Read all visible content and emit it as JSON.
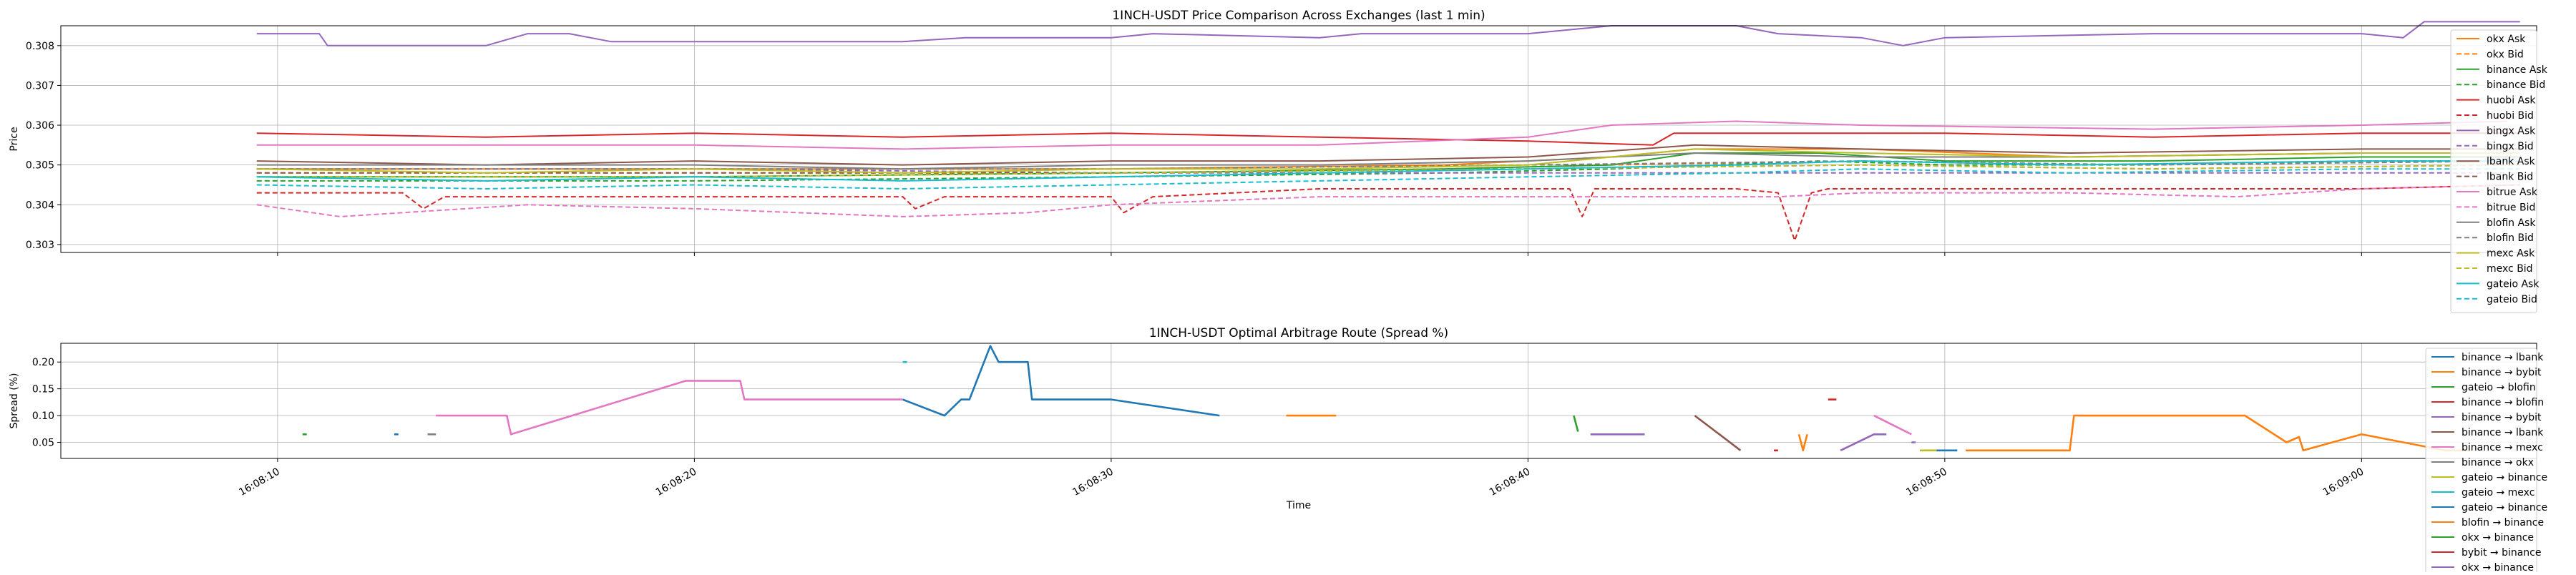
{
  "chart_data": [
    {
      "type": "line",
      "title": "1INCH-USDT Price Comparison Across Exchanges (last 1 min)",
      "xlabel": "",
      "ylabel": "Price",
      "y_ticks": [
        "0.303",
        "0.304",
        "0.305",
        "0.306",
        "0.307",
        "0.308"
      ],
      "ylim": [
        0.3028,
        0.3085
      ],
      "grid": true,
      "legend_position": "right",
      "series": [
        {
          "name": "okx Ask",
          "color": "#ff7f0e",
          "dashed": false,
          "x": [
            9.5,
            20,
            30,
            38,
            42,
            44,
            48,
            53,
            60,
            63.8
          ],
          "y": [
            0.3049,
            0.3049,
            0.3049,
            0.305,
            0.3052,
            0.3054,
            0.3054,
            0.3052,
            0.3053,
            0.3053
          ]
        },
        {
          "name": "okx Bid",
          "color": "#ff7f0e",
          "dashed": true,
          "x": [
            9.5,
            20,
            30,
            38,
            42,
            48,
            53,
            60,
            63.8
          ],
          "y": [
            0.3048,
            0.3048,
            0.3048,
            0.3049,
            0.305,
            0.3051,
            0.305,
            0.3051,
            0.3051
          ]
        },
        {
          "name": "binance Ask",
          "color": "#2ca02c",
          "dashed": false,
          "x": [
            9.5,
            20,
            30,
            38,
            42,
            44,
            47,
            50,
            55,
            60,
            63.8
          ],
          "y": [
            0.3047,
            0.3047,
            0.3048,
            0.3049,
            0.305,
            0.3053,
            0.3053,
            0.3051,
            0.3051,
            0.3052,
            0.3052
          ]
        },
        {
          "name": "binance Bid",
          "color": "#2ca02c",
          "dashed": true,
          "x": [
            9.5,
            20,
            30,
            38,
            42,
            47,
            50,
            55,
            60,
            63.8
          ],
          "y": [
            0.3046,
            0.3046,
            0.3047,
            0.3048,
            0.3049,
            0.3051,
            0.305,
            0.305,
            0.3051,
            0.3051
          ]
        },
        {
          "name": "huobi Ask",
          "color": "#d62728",
          "dashed": false,
          "x": [
            9.5,
            15,
            20,
            25,
            30,
            35,
            40,
            43,
            43.5,
            50,
            55,
            60,
            63.8
          ],
          "y": [
            0.3058,
            0.3057,
            0.3058,
            0.3057,
            0.3058,
            0.3057,
            0.3056,
            0.3055,
            0.3058,
            0.3058,
            0.3057,
            0.3058,
            0.3058
          ]
        },
        {
          "name": "huobi Bid",
          "color": "#d62728",
          "dashed": true,
          "x": [
            9.5,
            13,
            13.5,
            14,
            20,
            25,
            25.3,
            26,
            30,
            30.3,
            31,
            35,
            40,
            41,
            41.3,
            41.6,
            42,
            45,
            46,
            46.4,
            46.8,
            47.2,
            50,
            53,
            60,
            63.8
          ],
          "y": [
            0.3043,
            0.3043,
            0.3039,
            0.3042,
            0.3042,
            0.3042,
            0.3039,
            0.3042,
            0.3042,
            0.3038,
            0.3042,
            0.3044,
            0.3044,
            0.3044,
            0.3037,
            0.3044,
            0.3044,
            0.3044,
            0.3043,
            0.3031,
            0.3043,
            0.3044,
            0.3044,
            0.3044,
            0.3044,
            0.3045
          ]
        },
        {
          "name": "bingx Ask",
          "color": "#9467bd",
          "dashed": false,
          "x": [
            9.5,
            11,
            11.2,
            15,
            16,
            17,
            18,
            25,
            26.5,
            30,
            31,
            35,
            36,
            40,
            42,
            45,
            46,
            48,
            49,
            50,
            55,
            60,
            61,
            61.5,
            63.8
          ],
          "y": [
            0.3083,
            0.3083,
            0.308,
            0.308,
            0.3083,
            0.3083,
            0.3081,
            0.3081,
            0.3082,
            0.3082,
            0.3083,
            0.3082,
            0.3083,
            0.3083,
            0.3085,
            0.3085,
            0.3083,
            0.3082,
            0.308,
            0.3082,
            0.3083,
            0.3083,
            0.3082,
            0.3086,
            0.3086
          ]
        },
        {
          "name": "bingx Bid",
          "color": "#9467bd",
          "dashed": true,
          "x": [
            9.5,
            20,
            30,
            40,
            48,
            55,
            63.8
          ],
          "y": [
            0.3049,
            0.3049,
            0.3048,
            0.3048,
            0.3048,
            0.3048,
            0.3048
          ]
        },
        {
          "name": "lbank Ask",
          "color": "#8c564b",
          "dashed": false,
          "x": [
            9.5,
            15,
            20,
            25,
            30,
            35,
            40,
            44,
            48,
            53,
            60,
            63.8
          ],
          "y": [
            0.3051,
            0.305,
            0.3051,
            0.305,
            0.3051,
            0.3051,
            0.3052,
            0.3055,
            0.3054,
            0.3053,
            0.3054,
            0.3054
          ]
        },
        {
          "name": "lbank Bid",
          "color": "#8c564b",
          "dashed": true,
          "x": [
            9.5,
            20,
            30,
            40,
            48,
            55,
            63.8
          ],
          "y": [
            0.3048,
            0.3048,
            0.3048,
            0.3049,
            0.305,
            0.3049,
            0.305
          ]
        },
        {
          "name": "bitrue Ask",
          "color": "#e377c2",
          "dashed": false,
          "x": [
            9.5,
            15,
            20,
            25,
            30,
            35,
            40,
            42,
            45,
            48,
            55,
            60,
            63.5
          ],
          "y": [
            0.3055,
            0.3055,
            0.3055,
            0.3054,
            0.3055,
            0.3055,
            0.3057,
            0.306,
            0.3061,
            0.306,
            0.3059,
            0.306,
            0.3061
          ]
        },
        {
          "name": "bitrue Bid",
          "color": "#e377c2",
          "dashed": true,
          "x": [
            9.5,
            11.5,
            16,
            20,
            25,
            28,
            30,
            35,
            40,
            46,
            48,
            53,
            57,
            60,
            63.8
          ],
          "y": [
            0.304,
            0.3037,
            0.304,
            0.3039,
            0.3037,
            0.3038,
            0.304,
            0.3042,
            0.3042,
            0.3042,
            0.3043,
            0.3043,
            0.3042,
            0.3044,
            0.3045
          ]
        },
        {
          "name": "blofin Ask",
          "color": "#7f7f7f",
          "dashed": false,
          "x": [
            9.5,
            15,
            20,
            25,
            30,
            35,
            40,
            44,
            48,
            53,
            60,
            63.8
          ],
          "y": [
            0.305,
            0.305,
            0.305,
            0.3049,
            0.305,
            0.305,
            0.3051,
            0.3053,
            0.3052,
            0.3052,
            0.3053,
            0.3053
          ]
        },
        {
          "name": "blofin Bid",
          "color": "#7f7f7f",
          "dashed": true,
          "x": [
            9.5,
            20,
            30,
            40,
            48,
            55,
            63.8
          ],
          "y": [
            0.3049,
            0.3049,
            0.3049,
            0.305,
            0.3051,
            0.305,
            0.3051
          ]
        },
        {
          "name": "mexc Ask",
          "color": "#bcbd22",
          "dashed": false,
          "x": [
            9.5,
            15,
            20,
            25,
            30,
            35,
            40,
            44,
            48,
            53,
            60,
            63.8
          ],
          "y": [
            0.3049,
            0.3048,
            0.3049,
            0.3048,
            0.3049,
            0.3049,
            0.305,
            0.3054,
            0.3053,
            0.3052,
            0.3053,
            0.3053
          ]
        },
        {
          "name": "mexc Bid",
          "color": "#bcbd22",
          "dashed": true,
          "x": [
            9.5,
            20,
            30,
            40,
            48,
            55,
            63.8
          ],
          "y": [
            0.3047,
            0.3047,
            0.3048,
            0.3049,
            0.305,
            0.3049,
            0.305
          ]
        },
        {
          "name": "gateio Ask",
          "color": "#17becf",
          "dashed": false,
          "x": [
            9.5,
            15,
            20,
            25,
            30,
            35,
            40,
            45,
            48,
            53,
            60,
            63.8
          ],
          "y": [
            0.3047,
            0.3046,
            0.3047,
            0.3046,
            0.3047,
            0.3048,
            0.3049,
            0.305,
            0.3051,
            0.305,
            0.3051,
            0.3051
          ]
        },
        {
          "name": "gateio Bid",
          "color": "#17becf",
          "dashed": true,
          "x": [
            9.5,
            15,
            20,
            25,
            30,
            35,
            40,
            45,
            48,
            53,
            60,
            63.8
          ],
          "y": [
            0.3045,
            0.3044,
            0.3045,
            0.3044,
            0.3045,
            0.3046,
            0.3047,
            0.3048,
            0.3049,
            0.3048,
            0.3049,
            0.3049
          ]
        }
      ]
    },
    {
      "type": "line",
      "title": "1INCH-USDT Optimal Arbitrage Route (Spread %)",
      "xlabel": "Time",
      "ylabel": "Spread (%)",
      "x_ticks": [
        "16:08:10",
        "16:08:20",
        "16:08:30",
        "16:08:40",
        "16:08:50",
        "16:09:00"
      ],
      "y_ticks": [
        "0.05",
        "0.10",
        "0.15",
        "0.20"
      ],
      "ylim": [
        0.02,
        0.235
      ],
      "grid": true,
      "legend_position": "right",
      "series": [
        {
          "name": "binance → lbank",
          "color": "#1f77b4",
          "segments": [
            {
              "x": [
                25,
                26,
                26.4,
                26.6,
                27.1,
                27.3,
                28,
                28.1,
                30,
                32.6
              ],
              "y": [
                0.13,
                0.1,
                0.13,
                0.13,
                0.23,
                0.2,
                0.2,
                0.13,
                0.13,
                0.1
              ]
            },
            {
              "x": [
                49.8,
                50.3
              ],
              "y": [
                0.035,
                0.035
              ]
            }
          ]
        },
        {
          "name": "binance → bybit",
          "color": "#ff7f0e",
          "segments": [
            {
              "x": [
                34.2,
                35.4
              ],
              "y": [
                0.1,
                0.1
              ]
            },
            {
              "x": [
                50.5,
                53,
                53.1,
                57.2,
                58.2,
                58.5,
                58.6,
                60,
                61,
                62,
                62.6
              ],
              "y": [
                0.035,
                0.035,
                0.1,
                0.1,
                0.05,
                0.06,
                0.035,
                0.065,
                0.05,
                0.035,
                0.035
              ]
            }
          ]
        },
        {
          "name": "gateio → blofin",
          "color": "#2ca02c",
          "segments": [
            {
              "x": [
                41.1,
                41.2
              ],
              "y": [
                0.1,
                0.07
              ]
            }
          ]
        },
        {
          "name": "binance → blofin",
          "color": "#d62728",
          "segments": [
            {
              "x": [
                47.2,
                47.4
              ],
              "y": [
                0.13,
                0.13
              ]
            }
          ]
        },
        {
          "name": "binance → bybit",
          "color": "#9467bd",
          "segments": [
            {
              "x": [
                41.5,
                42.8
              ],
              "y": [
                0.065,
                0.065
              ]
            },
            {
              "x": [
                47.5,
                48.3,
                48.6
              ],
              "y": [
                0.035,
                0.065,
                0.065
              ]
            }
          ]
        },
        {
          "name": "binance → lbank",
          "color": "#8c564b",
          "segments": [
            {
              "x": [
                44,
                45.1
              ],
              "y": [
                0.1,
                0.035
              ]
            }
          ]
        },
        {
          "name": "binance → mexc",
          "color": "#e377c2",
          "segments": [
            {
              "x": [
                13.8,
                15.5,
                15.6,
                19.8,
                21.1,
                21.2,
                25
              ],
              "y": [
                0.1,
                0.1,
                0.065,
                0.165,
                0.165,
                0.13,
                0.13
              ]
            },
            {
              "x": [
                48.3,
                49.2
              ],
              "y": [
                0.1,
                0.065
              ]
            }
          ]
        },
        {
          "name": "binance → okx",
          "color": "#7f7f7f",
          "segments": [
            {
              "x": [
                13.6,
                13.8
              ],
              "y": [
                0.065,
                0.065
              ]
            }
          ]
        },
        {
          "name": "gateio → binance",
          "color": "#bcbd22",
          "segments": [
            {
              "x": [
                49.4,
                49.8
              ],
              "y": [
                0.035,
                0.035
              ]
            }
          ]
        },
        {
          "name": "gateio → mexc",
          "color": "#17becf",
          "segments": [
            {
              "x": [
                25,
                25.1
              ],
              "y": [
                0.2,
                0.2
              ]
            }
          ]
        },
        {
          "name": "gateio → binance",
          "color": "#1f77b4",
          "segments": [
            {
              "x": [
                12.8,
                12.9
              ],
              "y": [
                0.065,
                0.065
              ]
            }
          ]
        },
        {
          "name": "blofin → binance",
          "color": "#ff7f0e",
          "segments": [
            {
              "x": [
                46.5,
                46.6,
                46.7
              ],
              "y": [
                0.065,
                0.035,
                0.065
              ]
            }
          ]
        },
        {
          "name": "okx → binance",
          "color": "#2ca02c",
          "segments": [
            {
              "x": [
                10.6,
                10.7
              ],
              "y": [
                0.065,
                0.065
              ]
            }
          ]
        },
        {
          "name": "bybit → binance",
          "color": "#d62728",
          "segments": [
            {
              "x": [
                45.9,
                46
              ],
              "y": [
                0.035,
                0.035
              ]
            }
          ]
        },
        {
          "name": "okx → binance",
          "color": "#9467bd",
          "segments": [
            {
              "x": [
                49.2,
                49.3
              ],
              "y": [
                0.05,
                0.05
              ]
            }
          ]
        }
      ]
    }
  ]
}
